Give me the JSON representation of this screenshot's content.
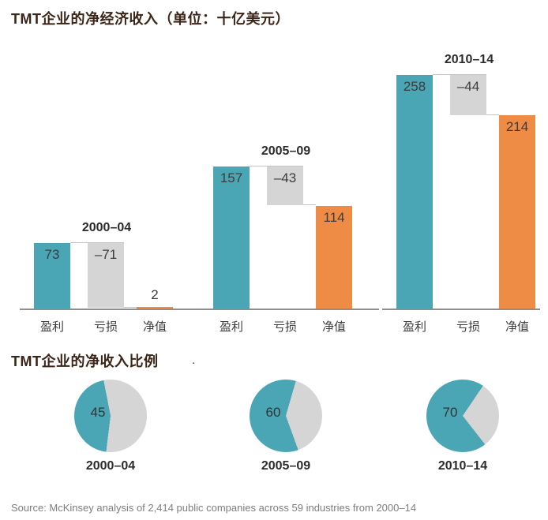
{
  "colors": {
    "teal": "#4AA6B5",
    "orange": "#EE8B45",
    "gray": "#D5D5D5",
    "baseline": "#8E8E8E",
    "connector": "#C4C4C4",
    "title_brown": "#3B2418",
    "text_dark": "#3C3C3C",
    "source_gray": "#7E7E7E"
  },
  "decorations": {
    "dot": "."
  },
  "source": "Source: McKinsey analysis of 2,414 public companies across 59 industries from 2000–14",
  "chart_data": [
    {
      "type": "bar",
      "subtype": "waterfall",
      "title": "TMT企业的净经济收入（单位：十亿美元）",
      "unit": "十亿美元",
      "categories": [
        "盈利",
        "亏损",
        "净值"
      ],
      "ylim": [
        0,
        260
      ],
      "grid": false,
      "legend": "none",
      "series_colors": {
        "盈利": "#4AA6B5",
        "亏损": "#D5D5D5",
        "净值": "#EE8B45"
      },
      "groups": [
        {
          "period": "2000–04",
          "values": [
            73,
            -71,
            2
          ],
          "labels": [
            "73",
            "–71",
            "2"
          ]
        },
        {
          "period": "2005–09",
          "values": [
            157,
            -43,
            114
          ],
          "labels": [
            "157",
            "–43",
            "114"
          ]
        },
        {
          "period": "2010–14",
          "values": [
            258,
            -44,
            214
          ],
          "labels": [
            "258",
            "–44",
            "214"
          ]
        }
      ]
    },
    {
      "type": "pie",
      "title": "TMT企业的净收入比例",
      "slice_colors": {
        "net_income_share": "#4AA6B5",
        "remainder": "#D5D5D5"
      },
      "pies": [
        {
          "period": "2000–04",
          "value": 45,
          "remainder": 55,
          "label": "45"
        },
        {
          "period": "2005–09",
          "value": 60,
          "remainder": 40,
          "label": "60"
        },
        {
          "period": "2010–14",
          "value": 70,
          "remainder": 30,
          "label": "70"
        }
      ]
    }
  ]
}
